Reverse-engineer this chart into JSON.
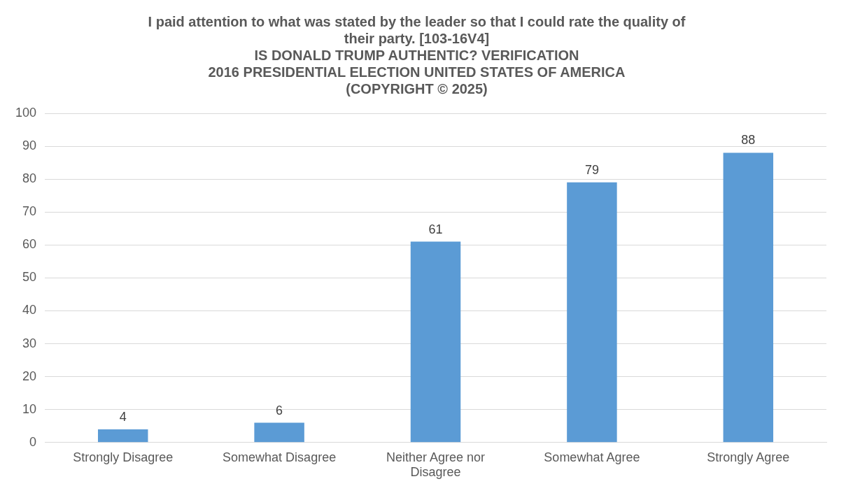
{
  "chart_data": {
    "type": "bar",
    "title": "I paid attention to what was stated by the leader so that I could rate the quality of their party. [103-16V4]",
    "subtitle": "IS DONALD TRUMP AUTHENTIC? VERIFICATION\n2016 PRESIDENTIAL ELECTION UNITED STATES OF AMERICA\n(COPYRIGHT © 2025)",
    "categories": [
      "Strongly Disagree",
      "Somewhat Disagree",
      "Neither Agree nor Disagree",
      "Somewhat Agree",
      "Strongly Agree"
    ],
    "values": [
      4,
      6,
      61,
      79,
      88
    ],
    "color": "#5b9bd5",
    "ylim": [
      0,
      100
    ],
    "yticks": [
      0,
      10,
      20,
      30,
      40,
      50,
      60,
      70,
      80,
      90,
      100
    ],
    "grid": "y",
    "data_labels": true,
    "legend": false
  }
}
